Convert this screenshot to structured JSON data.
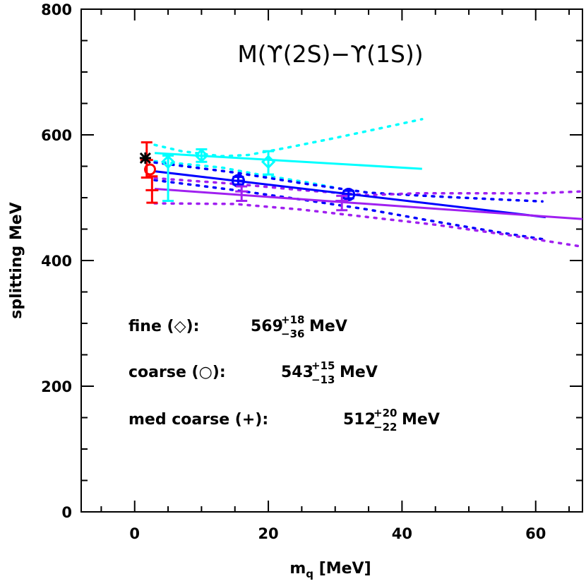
{
  "chart_data": {
    "type": "scatter",
    "title": "M(ϒ(2S)−ϒ(1S))",
    "xlabel": "m",
    "xlabel_sub": "q",
    "xlabel_rest": " [MeV]",
    "ylabel": "splitting MeV",
    "xlim": [
      -8,
      67
    ],
    "ylim": [
      0,
      800
    ],
    "x_ticks": [
      0,
      20,
      40,
      60
    ],
    "y_ticks": [
      0,
      200,
      400,
      600,
      800
    ],
    "grid": false,
    "colors": {
      "fine": "#00ffff",
      "coarse": "#0000ff",
      "med_coarse": "#a020f0",
      "chiral": "#ff0000",
      "experiment": "#000000"
    },
    "series": [
      {
        "key": "fine",
        "marker": "diamond",
        "points": [
          {
            "x": 5,
            "y": 557,
            "err_minus": 62,
            "err_plus": 10
          },
          {
            "x": 10,
            "y": 567,
            "err_minus": 10,
            "err_plus": 10
          },
          {
            "x": 20,
            "y": 557,
            "err_minus": 20,
            "err_plus": 17
          }
        ],
        "fit": [
          [
            3,
            571
          ],
          [
            43,
            546
          ]
        ],
        "band_upper": [
          [
            3,
            584
          ],
          [
            7,
            574
          ],
          [
            13,
            566
          ],
          [
            17,
            568
          ],
          [
            23,
            580
          ],
          [
            30,
            595
          ],
          [
            37,
            611
          ],
          [
            43,
            625
          ]
        ],
        "band_lower": [
          [
            3,
            558
          ],
          [
            7,
            554
          ],
          [
            13,
            548
          ],
          [
            18,
            538
          ],
          [
            22,
            531
          ],
          [
            26,
            524
          ],
          [
            30,
            516
          ]
        ]
      },
      {
        "key": "coarse",
        "marker": "circle-cross",
        "points": [
          {
            "x": 15.5,
            "y": 527,
            "err_minus": 6,
            "err_plus": 6
          },
          {
            "x": 32,
            "y": 505,
            "err_minus": 6,
            "err_plus": 6
          }
        ],
        "fit": [
          [
            3,
            542
          ],
          [
            61.5,
            469
          ]
        ],
        "band_upper": [
          [
            3,
            556
          ],
          [
            15,
            540
          ],
          [
            25,
            523
          ],
          [
            35,
            508
          ],
          [
            45,
            502
          ],
          [
            55,
            497
          ],
          [
            61,
            494
          ]
        ],
        "band_lower": [
          [
            3,
            528
          ],
          [
            15,
            512
          ],
          [
            25,
            497
          ],
          [
            35,
            481
          ],
          [
            45,
            462
          ],
          [
            55,
            444
          ],
          [
            61,
            434
          ]
        ]
      },
      {
        "key": "med_coarse",
        "marker": "plus",
        "points": [
          {
            "x": 16,
            "y": 510,
            "err_minus": 15,
            "err_plus": 8
          },
          {
            "x": 31,
            "y": 495,
            "err_minus": 15,
            "err_plus": 8
          }
        ],
        "fit": [
          [
            3,
            514
          ],
          [
            67,
            466
          ]
        ],
        "band_upper": [
          [
            3,
            531
          ],
          [
            15,
            522
          ],
          [
            25,
            512
          ],
          [
            35,
            504
          ],
          [
            42,
            507
          ],
          [
            50,
            507
          ],
          [
            60,
            507
          ],
          [
            67,
            510
          ]
        ],
        "band_lower": [
          [
            3,
            491
          ],
          [
            15,
            490
          ],
          [
            25,
            481
          ],
          [
            35,
            469
          ],
          [
            45,
            457
          ],
          [
            55,
            442
          ],
          [
            67,
            422
          ]
        ]
      }
    ],
    "chiral_points": [
      {
        "x": 1.8,
        "y": 560,
        "err_minus": 28,
        "err_plus": 28,
        "marker": "plus"
      },
      {
        "x": 2.3,
        "y": 545,
        "err_minus": 0,
        "err_plus": 0,
        "marker": "circle"
      },
      {
        "x": 2.6,
        "y": 512,
        "err_minus": 20,
        "err_plus": 22,
        "marker": "plus"
      }
    ],
    "experiment_point": {
      "x": 1.6,
      "y": 563,
      "marker": "star"
    },
    "annotations": [
      {
        "label": "fine (◇):",
        "value": "569",
        "sup": "+18",
        "sub": "−36",
        "unit": "MeV"
      },
      {
        "label": "coarse (○):",
        "value": "543",
        "sup": "+15",
        "sub": "−13",
        "unit": "MeV"
      },
      {
        "label": "med coarse (+):",
        "value": "512",
        "sup": "+20",
        "sub": "−22",
        "unit": "MeV"
      }
    ]
  }
}
